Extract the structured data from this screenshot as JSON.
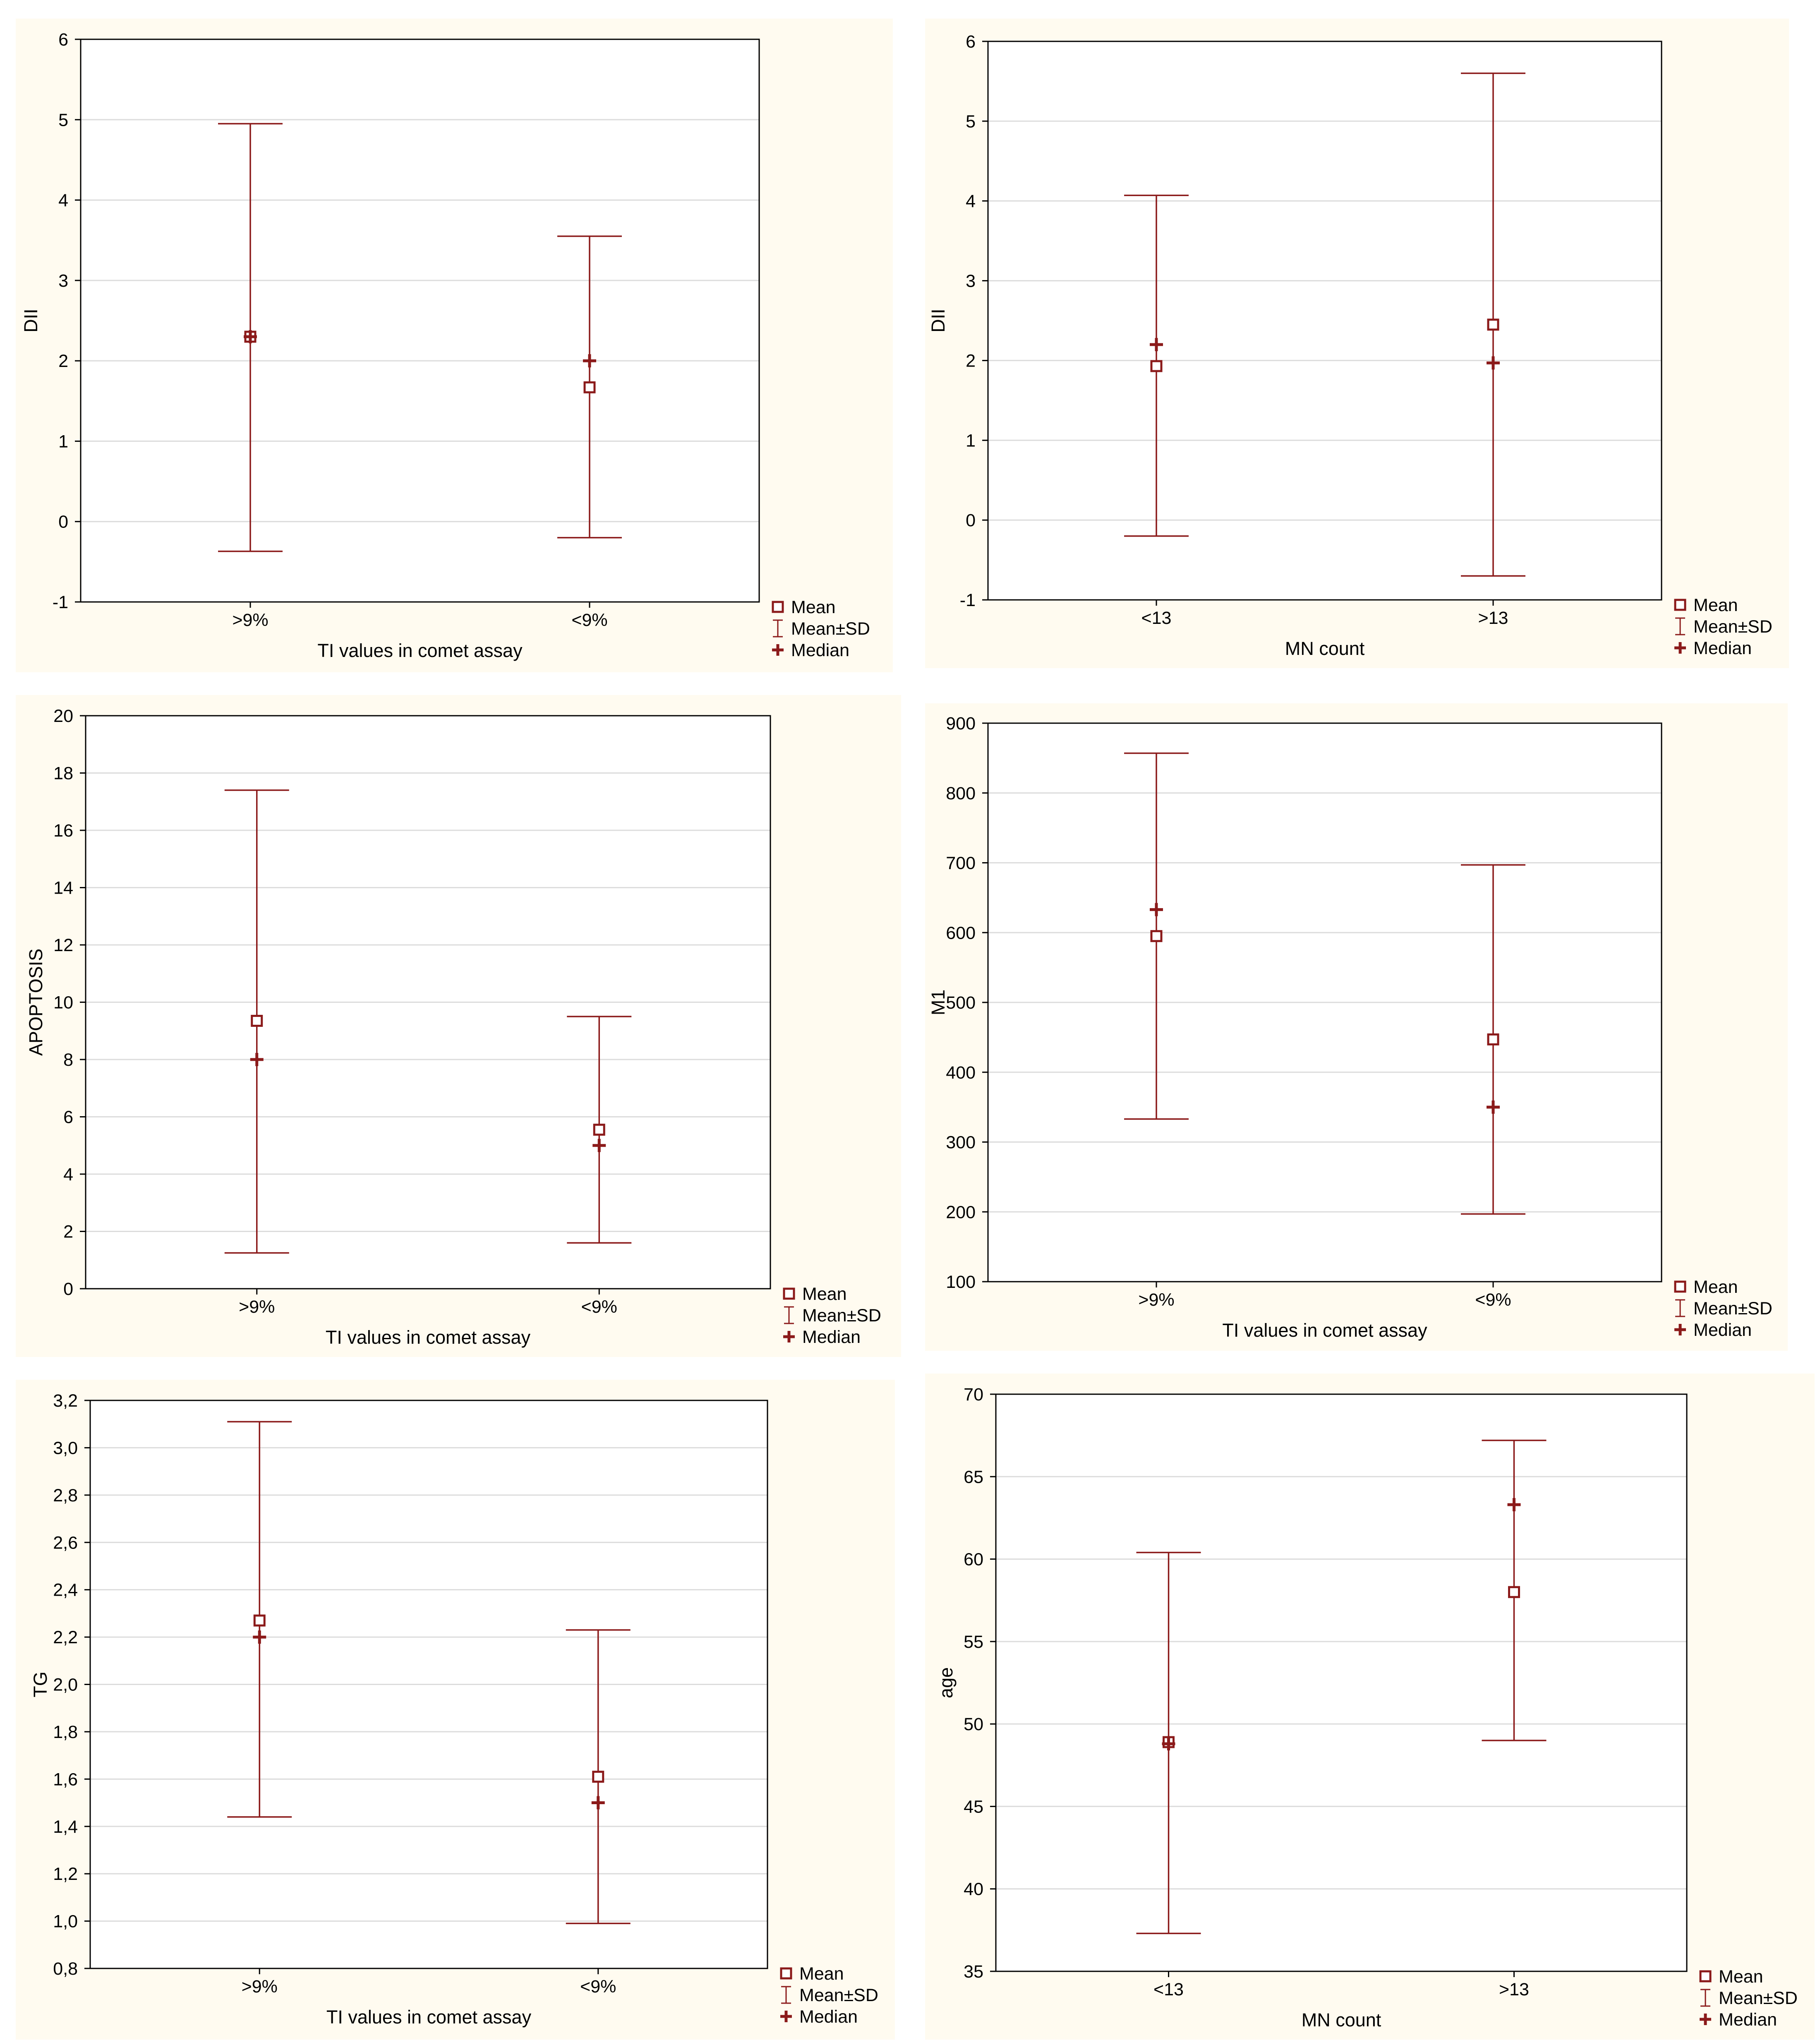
{
  "figure": {
    "background": "#ffffff",
    "panel_background": "#fffbf0",
    "plot_background": "#ffffff",
    "mark_color": "#8b1a1a",
    "grid_color": "#dcdcdc",
    "legend": [
      "Mean",
      "Mean±SD",
      "Median"
    ]
  },
  "chart_data": [
    {
      "type": "errorbar",
      "title": "",
      "xlabel": "TI values in comet assay",
      "ylabel": "DII",
      "categories": [
        ">9%",
        "<9%"
      ],
      "ylim": [
        -1,
        6
      ],
      "yticks": [
        "-1",
        "0",
        "1",
        "2",
        "3",
        "4",
        "5",
        "6"
      ],
      "ytick_values": [
        -1,
        0,
        1,
        2,
        3,
        4,
        5,
        6
      ],
      "series": [
        {
          "name": "Mean",
          "values": [
            2.3,
            1.67
          ]
        },
        {
          "name": "Mean±SD",
          "low": [
            -0.37,
            -0.2
          ],
          "high": [
            4.95,
            3.55
          ]
        },
        {
          "name": "Median",
          "values": [
            2.3,
            2.0
          ]
        }
      ],
      "legend_position": "right-bottom"
    },
    {
      "type": "errorbar",
      "title": "",
      "xlabel": "MN count",
      "ylabel": "DII",
      "categories": [
        "<13",
        ">13"
      ],
      "ylim": [
        -1,
        6
      ],
      "yticks": [
        "-1",
        "0",
        "1",
        "2",
        "3",
        "4",
        "5",
        "6"
      ],
      "ytick_values": [
        -1,
        0,
        1,
        2,
        3,
        4,
        5,
        6
      ],
      "series": [
        {
          "name": "Mean",
          "values": [
            1.93,
            2.45
          ]
        },
        {
          "name": "Mean±SD",
          "low": [
            -0.2,
            -0.7
          ],
          "high": [
            4.07,
            5.6
          ]
        },
        {
          "name": "Median",
          "values": [
            2.2,
            1.97
          ]
        }
      ],
      "legend_position": "right-bottom"
    },
    {
      "type": "errorbar",
      "title": "",
      "xlabel": "TI values in comet assay",
      "ylabel": "APOPTOSIS",
      "categories": [
        ">9%",
        "<9%"
      ],
      "ylim": [
        0,
        20
      ],
      "yticks": [
        "0",
        "2",
        "4",
        "6",
        "8",
        "10",
        "12",
        "14",
        "16",
        "18",
        "20"
      ],
      "ytick_values": [
        0,
        2,
        4,
        6,
        8,
        10,
        12,
        14,
        16,
        18,
        20
      ],
      "series": [
        {
          "name": "Mean",
          "values": [
            9.35,
            5.55
          ]
        },
        {
          "name": "Mean±SD",
          "low": [
            1.25,
            1.6
          ],
          "high": [
            17.4,
            9.5
          ]
        },
        {
          "name": "Median",
          "values": [
            8.0,
            5.0
          ]
        }
      ],
      "legend_position": "right-bottom"
    },
    {
      "type": "errorbar",
      "title": "",
      "xlabel": "TI values in comet assay",
      "ylabel": "M1",
      "categories": [
        ">9%",
        "<9%"
      ],
      "ylim": [
        100,
        900
      ],
      "yticks": [
        "100",
        "200",
        "300",
        "400",
        "500",
        "600",
        "700",
        "800",
        "900"
      ],
      "ytick_values": [
        100,
        200,
        300,
        400,
        500,
        600,
        700,
        800,
        900
      ],
      "series": [
        {
          "name": "Mean",
          "values": [
            595,
            447
          ]
        },
        {
          "name": "Mean±SD",
          "low": [
            333,
            197
          ],
          "high": [
            857,
            697
          ]
        },
        {
          "name": "Median",
          "values": [
            633,
            350
          ]
        }
      ],
      "legend_position": "right-bottom"
    },
    {
      "type": "errorbar",
      "title": "",
      "xlabel": "TI values in comet assay",
      "ylabel": "TG",
      "categories": [
        ">9%",
        "<9%"
      ],
      "ylim": [
        0.8,
        3.2
      ],
      "yticks": [
        "0,8",
        "1,0",
        "1,2",
        "1,4",
        "1,6",
        "1,8",
        "2,0",
        "2,2",
        "2,4",
        "2,6",
        "2,8",
        "3,0",
        "3,2"
      ],
      "ytick_values": [
        0.8,
        1.0,
        1.2,
        1.4,
        1.6,
        1.8,
        2.0,
        2.2,
        2.4,
        2.6,
        2.8,
        3.0,
        3.2
      ],
      "series": [
        {
          "name": "Mean",
          "values": [
            2.27,
            1.61
          ]
        },
        {
          "name": "Mean±SD",
          "low": [
            1.44,
            0.99
          ],
          "high": [
            3.11,
            2.23
          ]
        },
        {
          "name": "Median",
          "values": [
            2.2,
            1.5
          ]
        }
      ],
      "legend_position": "right-bottom"
    },
    {
      "type": "errorbar",
      "title": "",
      "xlabel": "MN count",
      "ylabel": "age",
      "categories": [
        "<13",
        ">13"
      ],
      "ylim": [
        35,
        70
      ],
      "yticks": [
        "35",
        "40",
        "45",
        "50",
        "55",
        "60",
        "65",
        "70"
      ],
      "ytick_values": [
        35,
        40,
        45,
        50,
        55,
        60,
        65,
        70
      ],
      "series": [
        {
          "name": "Mean",
          "values": [
            48.9,
            58.0
          ]
        },
        {
          "name": "Mean±SD",
          "low": [
            37.3,
            49.0
          ],
          "high": [
            60.4,
            67.2
          ]
        },
        {
          "name": "Median",
          "values": [
            48.8,
            63.3
          ]
        }
      ],
      "legend_position": "right-bottom"
    }
  ]
}
